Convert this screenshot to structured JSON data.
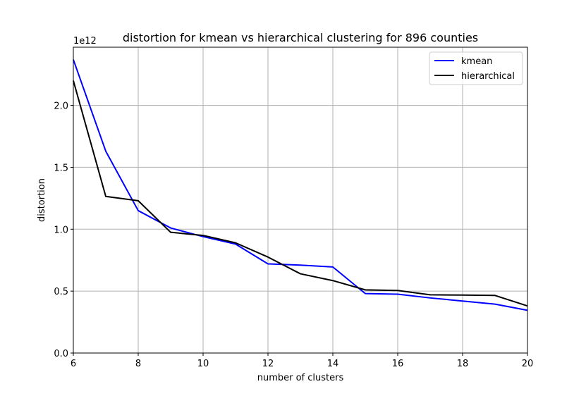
{
  "chart_data": {
    "type": "line",
    "title": "distortion for kmean vs hierarchical clustering for 896 counties",
    "xlabel": "number of clusters",
    "ylabel": "distortion",
    "y_offset_label": "1e12",
    "xlim": [
      6,
      20
    ],
    "ylim": [
      0,
      2.47
    ],
    "x_ticks": [
      6,
      8,
      10,
      12,
      14,
      16,
      18,
      20
    ],
    "x_tick_labels": [
      "6",
      "8",
      "10",
      "12",
      "14",
      "16",
      "18",
      "20"
    ],
    "y_ticks": [
      0,
      0.5,
      1.0,
      1.5,
      2.0
    ],
    "y_tick_labels": [
      "0.0",
      "0.5",
      "1.0",
      "1.5",
      "2.0"
    ],
    "grid": true,
    "legend_position": "top-right",
    "x": [
      6,
      7,
      8,
      9,
      10,
      11,
      12,
      13,
      14,
      15,
      16,
      17,
      18,
      19,
      20
    ],
    "series": [
      {
        "name": "kmean",
        "color": "#0000ff",
        "values": [
          2.37,
          1.63,
          1.15,
          1.01,
          0.94,
          0.88,
          0.72,
          0.71,
          0.695,
          0.48,
          0.475,
          0.445,
          0.42,
          0.395,
          0.345
        ]
      },
      {
        "name": "hierarchical",
        "color": "#000000",
        "values": [
          2.2,
          1.265,
          1.23,
          0.975,
          0.95,
          0.89,
          0.775,
          0.64,
          0.585,
          0.51,
          0.505,
          0.47,
          0.468,
          0.465,
          0.38
        ]
      }
    ]
  }
}
